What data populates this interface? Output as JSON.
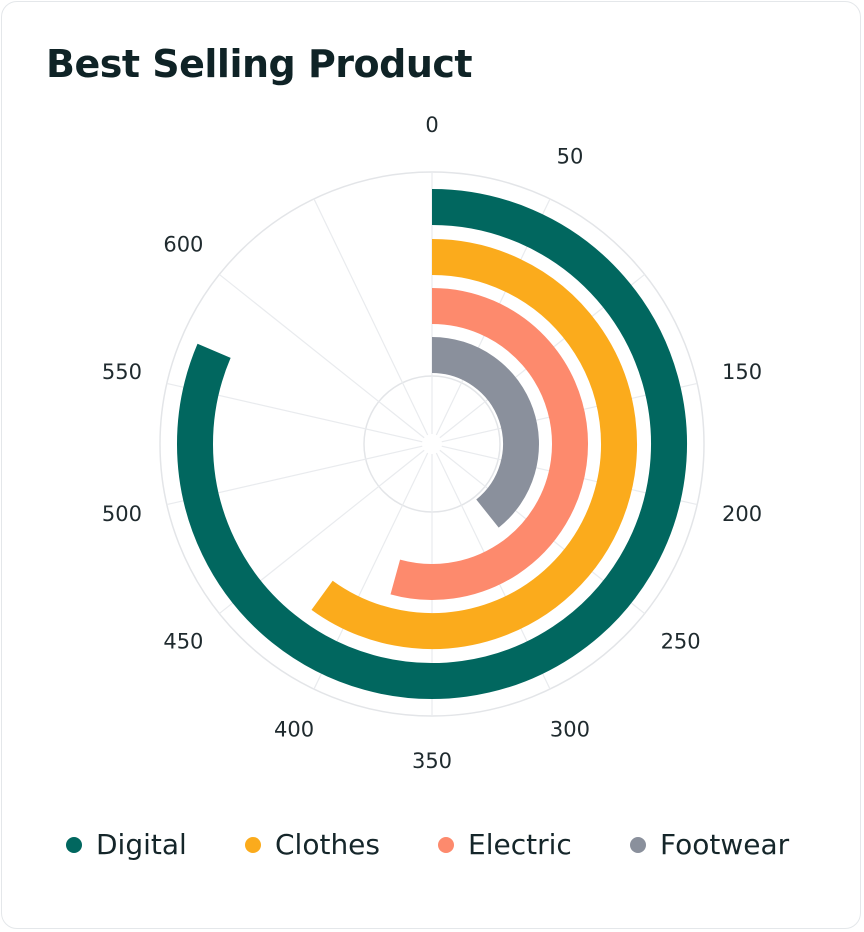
{
  "title": "Best Selling Product",
  "chart_data": {
    "type": "radial-bar",
    "title": "Best Selling Product",
    "angle_axis": {
      "min": 0,
      "max": 700,
      "ticks": [
        0,
        50,
        150,
        200,
        250,
        300,
        350,
        400,
        450,
        500,
        550,
        600
      ]
    },
    "series": [
      {
        "name": "Digital",
        "value": 570,
        "color": "#01675f"
      },
      {
        "name": "Clothes",
        "value": 420,
        "color": "#fbab1c"
      },
      {
        "name": "Electric",
        "value": 380,
        "color": "#fd8a6d"
      },
      {
        "name": "Footwear",
        "value": 275,
        "color": "#8a909c"
      }
    ],
    "grid": true,
    "legend_position": "bottom"
  },
  "legend": {
    "items": [
      {
        "label": "Digital",
        "color": "#01675f"
      },
      {
        "label": "Clothes",
        "color": "#fbab1c"
      },
      {
        "label": "Electric",
        "color": "#fd8a6d"
      },
      {
        "label": "Footwear",
        "color": "#8a909c"
      }
    ]
  }
}
